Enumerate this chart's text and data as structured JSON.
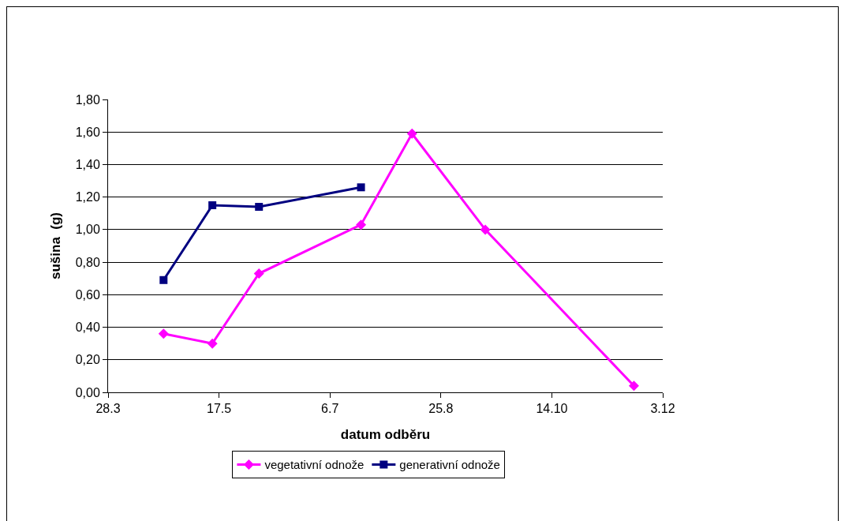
{
  "chart_data": {
    "type": "line",
    "xlabel": "datum odběru",
    "ylabel": "sušina  (g)",
    "xlim": [
      "--03-28",
      "--12-03"
    ],
    "xticks": [
      {
        "value": "--03-28",
        "label": "28.3"
      },
      {
        "value": "--05-17",
        "label": "17.5"
      },
      {
        "value": "--07-06",
        "label": "6.7"
      },
      {
        "value": "--08-25",
        "label": "25.8"
      },
      {
        "value": "--10-14",
        "label": "14.10"
      },
      {
        "value": "--12-03",
        "label": "3.12"
      }
    ],
    "ylim": [
      0,
      1.8
    ],
    "yticks": [
      {
        "value": 0,
        "label": "0,00"
      },
      {
        "value": 0.2,
        "label": "0,20"
      },
      {
        "value": 0.4,
        "label": "0,40"
      },
      {
        "value": 0.6,
        "label": "0,60"
      },
      {
        "value": 0.8,
        "label": "0,80"
      },
      {
        "value": 1.0,
        "label": "1,00"
      },
      {
        "value": 1.2,
        "label": "1,20"
      },
      {
        "value": 1.4,
        "label": "1,40"
      },
      {
        "value": 1.6,
        "label": "1,60"
      },
      {
        "value": 1.8,
        "label": "1,80"
      }
    ],
    "grid": "y",
    "legend": "bottom",
    "series": [
      {
        "name": "vegetativní odnože",
        "color": "#ff00ff",
        "marker": "diamond",
        "x": [
          "--04-22",
          "--05-14",
          "--06-04",
          "--07-20",
          "--08-12",
          "--09-14",
          "--11-20"
        ],
        "values": [
          0.36,
          0.3,
          0.73,
          1.03,
          1.59,
          1.0,
          0.04
        ]
      },
      {
        "name": "generativní odnože",
        "color": "#000080",
        "marker": "square",
        "x": [
          "--04-22",
          "--05-14",
          "--06-04",
          "--07-20"
        ],
        "values": [
          0.69,
          1.15,
          1.14,
          1.26
        ]
      }
    ]
  }
}
